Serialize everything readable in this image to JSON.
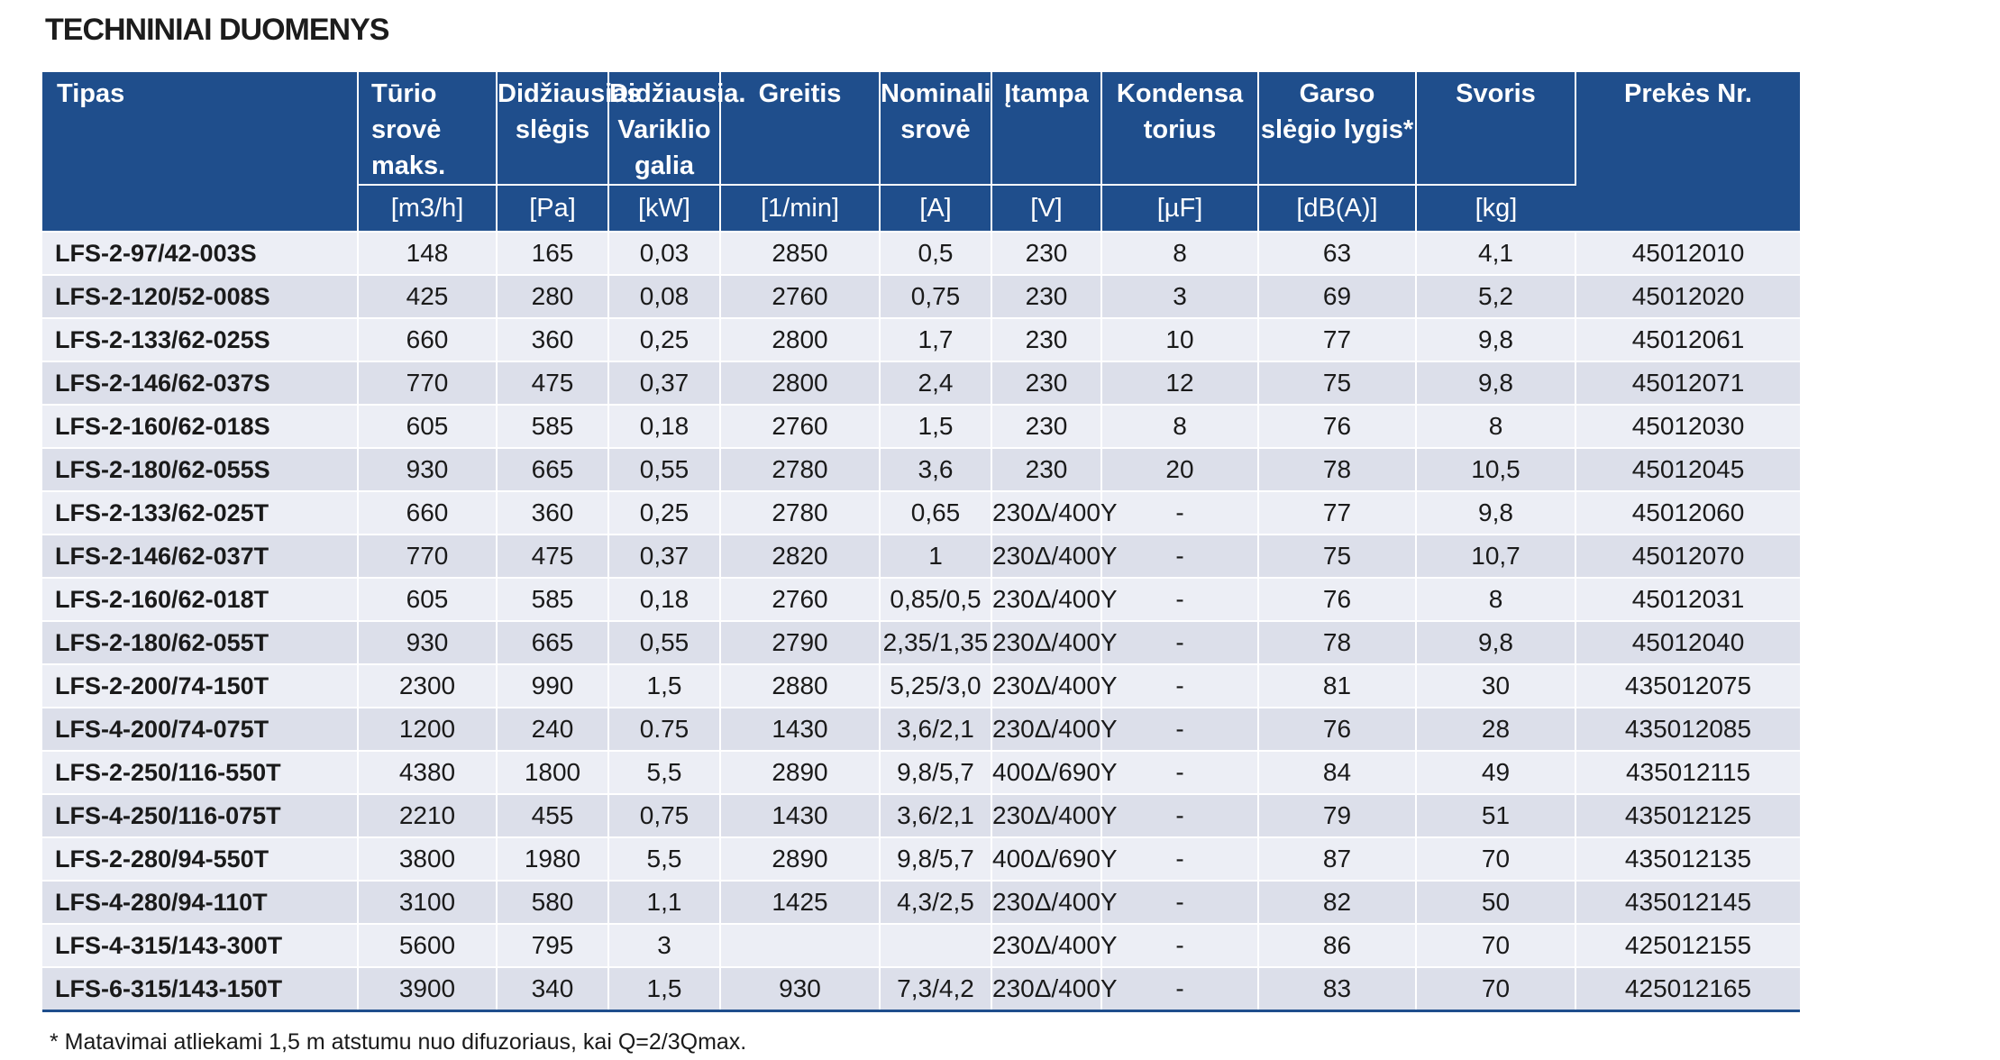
{
  "title": "TECHNINIAI DUOMENYS",
  "headers": [
    {
      "label": "Tipas",
      "unit": ""
    },
    {
      "label": "Tūrio srovė maks.",
      "unit": "[m3/h]"
    },
    {
      "label": "Didžiausias slėgis",
      "unit": "[Pa]"
    },
    {
      "label": "Didžiausia. Variklio galia",
      "unit": "[kW]"
    },
    {
      "label": "Greitis",
      "unit": "[1/min]"
    },
    {
      "label": "Nominali srovė",
      "unit": "[A]"
    },
    {
      "label": "Įtampa",
      "unit": "[V]"
    },
    {
      "label": "Kondensa torius",
      "unit": "[µF]"
    },
    {
      "label": "Garso slėgio lygis*",
      "unit": "[dB(A)]"
    },
    {
      "label": "Svoris",
      "unit": "[kg]"
    },
    {
      "label": "Prekės Nr.",
      "unit": ""
    }
  ],
  "rows": [
    [
      "LFS-2-97/42-003S",
      "148",
      "165",
      "0,03",
      "2850",
      "0,5",
      "230",
      "8",
      "63",
      "4,1",
      "45012010"
    ],
    [
      "LFS-2-120/52-008S",
      "425",
      "280",
      "0,08",
      "2760",
      "0,75",
      "230",
      "3",
      "69",
      "5,2",
      "45012020"
    ],
    [
      "LFS-2-133/62-025S",
      "660",
      "360",
      "0,25",
      "2800",
      "1,7",
      "230",
      "10",
      "77",
      "9,8",
      "45012061"
    ],
    [
      "LFS-2-146/62-037S",
      "770",
      "475",
      "0,37",
      "2800",
      "2,4",
      "230",
      "12",
      "75",
      "9,8",
      "45012071"
    ],
    [
      "LFS-2-160/62-018S",
      "605",
      "585",
      "0,18",
      "2760",
      "1,5",
      "230",
      "8",
      "76",
      "8",
      "45012030"
    ],
    [
      "LFS-2-180/62-055S",
      "930",
      "665",
      "0,55",
      "2780",
      "3,6",
      "230",
      "20",
      "78",
      "10,5",
      "45012045"
    ],
    [
      "LFS-2-133/62-025T",
      "660",
      "360",
      "0,25",
      "2780",
      "0,65",
      "230Δ/400Y",
      "-",
      "77",
      "9,8",
      "45012060"
    ],
    [
      "LFS-2-146/62-037T",
      "770",
      "475",
      "0,37",
      "2820",
      "1",
      "230Δ/400Y",
      "-",
      "75",
      "10,7",
      "45012070"
    ],
    [
      "LFS-2-160/62-018T",
      "605",
      "585",
      "0,18",
      "2760",
      "0,85/0,5",
      "230Δ/400Y",
      "-",
      "76",
      "8",
      "45012031"
    ],
    [
      "LFS-2-180/62-055T",
      "930",
      "665",
      "0,55",
      "2790",
      "2,35/1,35",
      "230Δ/400Y",
      "-",
      "78",
      "9,8",
      "45012040"
    ],
    [
      "LFS-2-200/74-150T",
      "2300",
      "990",
      "1,5",
      "2880",
      "5,25/3,0",
      "230Δ/400Y",
      "-",
      "81",
      "30",
      "435012075"
    ],
    [
      "LFS-4-200/74-075T",
      "1200",
      "240",
      "0.75",
      "1430",
      "3,6/2,1",
      "230Δ/400Y",
      "-",
      "76",
      "28",
      "435012085"
    ],
    [
      "LFS-2-250/116-550T",
      "4380",
      "1800",
      "5,5",
      "2890",
      "9,8/5,7",
      "400Δ/690Y",
      "-",
      "84",
      "49",
      "435012115"
    ],
    [
      "LFS-4-250/116-075T",
      "2210",
      "455",
      "0,75",
      "1430",
      "3,6/2,1",
      "230Δ/400Y",
      "-",
      "79",
      "51",
      "435012125"
    ],
    [
      "LFS-2-280/94-550T",
      "3800",
      "1980",
      "5,5",
      "2890",
      "9,8/5,7",
      "400Δ/690Y",
      "-",
      "87",
      "70",
      "435012135"
    ],
    [
      "LFS-4-280/94-110T",
      "3100",
      "580",
      "1,1",
      "1425",
      "4,3/2,5",
      "230Δ/400Y",
      "-",
      "82",
      "50",
      "435012145"
    ],
    [
      "LFS-4-315/143-300T",
      "5600",
      "795",
      "3",
      "",
      "",
      "230Δ/400Y",
      "-",
      "86",
      "70",
      "425012155"
    ],
    [
      "LFS-6-315/143-150T",
      "3900",
      "340",
      "1,5",
      "930",
      "7,3/4,2",
      "230Δ/400Y",
      "-",
      "83",
      "70",
      "425012165"
    ]
  ],
  "footnote": "* Matavimai atliekami 1,5 m atstumu nuo difuzoriaus, kai Q=2/3Qmax."
}
